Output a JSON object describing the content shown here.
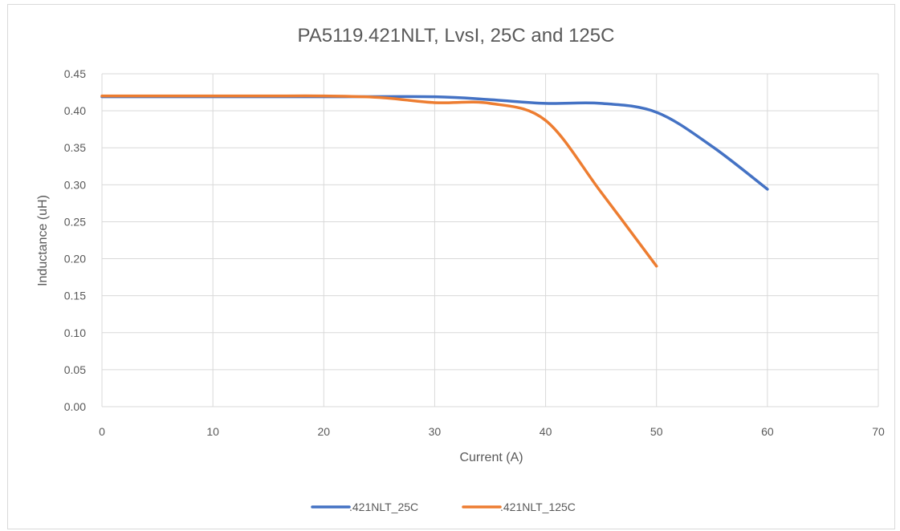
{
  "chart_data": {
    "type": "line",
    "title": "PA5119.421NLT, LvsI, 25C and 125C",
    "xlabel": "Current (A)",
    "ylabel": "Inductance (uH)",
    "xlim": [
      0,
      70
    ],
    "ylim": [
      0,
      0.45
    ],
    "xticks": [
      0,
      10,
      20,
      30,
      40,
      50,
      60,
      70
    ],
    "yticks": [
      0.0,
      0.05,
      0.1,
      0.15,
      0.2,
      0.25,
      0.3,
      0.35,
      0.4,
      0.45
    ],
    "xtick_labels": [
      "0",
      "10",
      "20",
      "30",
      "40",
      "50",
      "60",
      "70"
    ],
    "ytick_labels": [
      "0.00",
      "0.05",
      "0.10",
      "0.15",
      "0.20",
      "0.25",
      "0.30",
      "0.35",
      "0.40",
      "0.45"
    ],
    "grid": true,
    "legend_position": "bottom",
    "series": [
      {
        "name": ".421NLT_25C",
        "color": "#4472c4",
        "x": [
          0,
          10,
          20,
          30,
          35,
          40,
          45,
          50,
          55,
          60
        ],
        "y": [
          0.419,
          0.419,
          0.419,
          0.419,
          0.415,
          0.41,
          0.41,
          0.398,
          0.352,
          0.294
        ]
      },
      {
        "name": ".421NLT_125C",
        "color": "#ed7d31",
        "x": [
          0,
          5,
          10,
          15,
          20,
          25,
          30,
          35,
          40,
          45,
          50
        ],
        "y": [
          0.42,
          0.42,
          0.42,
          0.42,
          0.42,
          0.418,
          0.411,
          0.41,
          0.387,
          0.29,
          0.19
        ]
      }
    ]
  }
}
